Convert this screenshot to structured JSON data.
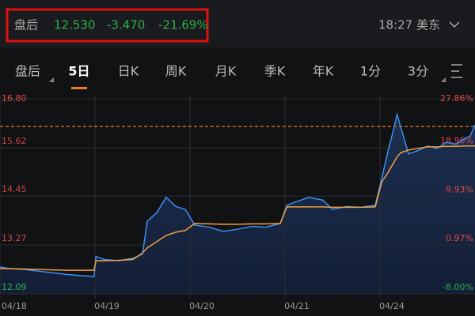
{
  "header": {
    "session": "盘后",
    "price": "12.530",
    "change": "-3.470",
    "change_pct": "-21.69%",
    "time": "18:27 美东"
  },
  "tabs": [
    "盘后",
    "5日",
    "日K",
    "周K",
    "月K",
    "季K",
    "年K",
    "1分",
    "3分"
  ],
  "chart_data": {
    "type": "line",
    "x": [
      0,
      0.1,
      0.25,
      0.4,
      0.55,
      0.7,
      0.85,
      0.99,
      1.01,
      1.1,
      1.25,
      1.4,
      1.5,
      1.55,
      1.65,
      1.75,
      1.85,
      1.95,
      2.05,
      2.2,
      2.35,
      2.5,
      2.65,
      2.8,
      2.95,
      3.02,
      3.1,
      3.25,
      3.4,
      3.5,
      3.65,
      3.8,
      3.95,
      4.02,
      4.08,
      4.13,
      4.18,
      4.22,
      4.3,
      4.4,
      4.5,
      4.6,
      4.7,
      4.8,
      4.9,
      4.95,
      5
    ],
    "series": [
      {
        "color": "#3d8ef0",
        "values": [
          12.74,
          12.7,
          12.68,
          12.64,
          12.6,
          12.56,
          12.53,
          12.51,
          12.99,
          12.92,
          12.89,
          12.95,
          13.05,
          13.84,
          14.05,
          14.42,
          14.2,
          14.13,
          13.75,
          13.7,
          13.6,
          13.65,
          13.72,
          13.7,
          13.79,
          14.23,
          14.3,
          14.42,
          14.35,
          14.13,
          14.2,
          14.18,
          14.23,
          14.89,
          15.5,
          15.94,
          16.42,
          16.1,
          15.47,
          15.55,
          15.66,
          15.6,
          15.75,
          15.7,
          15.85,
          15.9,
          16.17
        ]
      },
      {
        "color": "#f0a040",
        "values": [
          12.7,
          12.7,
          12.69,
          12.68,
          12.67,
          12.66,
          12.66,
          12.66,
          12.89,
          12.89,
          12.9,
          12.92,
          13.08,
          13.2,
          13.35,
          13.5,
          13.58,
          13.62,
          13.79,
          13.78,
          13.77,
          13.77,
          13.78,
          13.78,
          13.79,
          14.19,
          14.19,
          14.19,
          14.19,
          14.18,
          14.18,
          14.18,
          14.19,
          14.8,
          15.0,
          15.2,
          15.4,
          15.5,
          15.56,
          15.6,
          15.64,
          15.64,
          15.65,
          15.65,
          15.66,
          15.66,
          15.66
        ]
      }
    ],
    "dashed_line": 16.13,
    "xlim": [
      0,
      5
    ],
    "xticks": [
      {
        "value": 0,
        "label": "04/18"
      },
      {
        "value": 1,
        "label": "04/19"
      },
      {
        "value": 2,
        "label": "04/20"
      },
      {
        "value": 3,
        "label": "04/21"
      },
      {
        "value": 4,
        "label": "04/24"
      }
    ],
    "ylim": [
      12.09,
      16.8
    ],
    "yticks": [
      {
        "value": 16.8,
        "label": "16.80"
      },
      {
        "value": 15.62,
        "label": "15.62"
      },
      {
        "value": 14.45,
        "label": "14.45"
      },
      {
        "value": 13.27,
        "label": "13.27"
      },
      {
        "value": 12.09,
        "label": "12.09"
      }
    ],
    "y2lim": [
      -8,
      27.86
    ],
    "y2ticks": [
      {
        "value": 27.86,
        "label": "27.86%"
      },
      {
        "value": 18.96,
        "label": "18.96%"
      },
      {
        "value": 9.93,
        "label": "9.93%"
      },
      {
        "value": 0.97,
        "label": "0.97%"
      },
      {
        "value": -8,
        "label": "-8.00%"
      }
    ]
  }
}
